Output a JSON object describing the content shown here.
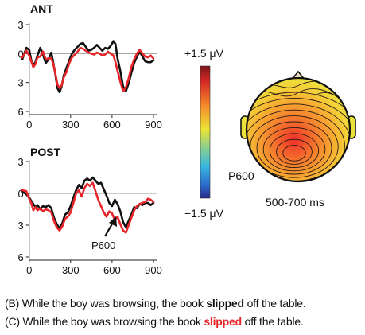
{
  "chart_data": [
    {
      "type": "line",
      "title": "ANT",
      "xlim": [
        -50,
        900
      ],
      "ylim": [
        -3,
        6
      ],
      "y_inverted": true,
      "xticks": [
        0,
        300,
        600,
        900
      ],
      "yticks": [
        -3,
        0,
        3,
        6
      ],
      "xtick_labels": [
        "0",
        "300",
        "600",
        "900"
      ],
      "ytick_labels": [
        "−3",
        "0",
        "3",
        "6"
      ],
      "series": [
        {
          "color": "#111111",
          "x": [
            -50,
            -20,
            0,
            15,
            30,
            45,
            60,
            80,
            100,
            120,
            140,
            160,
            175,
            190,
            205,
            220,
            235,
            250,
            270,
            290,
            310,
            330,
            350,
            370,
            390,
            410,
            430,
            450,
            470,
            490,
            510,
            530,
            550,
            570,
            590,
            610,
            625,
            640,
            660,
            680,
            700,
            720,
            740,
            760,
            780,
            800,
            820,
            840,
            860,
            880,
            900
          ],
          "y": [
            0.6,
            -0.6,
            -0.4,
            0.7,
            1.2,
            0.9,
            0.2,
            -0.6,
            0.1,
            1.0,
            0.6,
            -0.1,
            1.0,
            2.2,
            3.6,
            4.0,
            3.4,
            2.3,
            1.5,
            0.7,
            0.0,
            -0.4,
            -0.7,
            -1.0,
            -1.1,
            -0.7,
            -0.3,
            -0.4,
            -0.6,
            -0.9,
            -0.6,
            -0.3,
            -0.6,
            -0.5,
            -0.8,
            -1.3,
            -1.0,
            0.5,
            1.8,
            3.4,
            3.9,
            3.1,
            2.0,
            1.0,
            0.3,
            -0.2,
            0.3,
            0.8,
            0.9,
            0.9,
            0.7
          ]
        },
        {
          "color": "#e8262a",
          "x": [
            -50,
            -20,
            0,
            15,
            30,
            45,
            60,
            80,
            100,
            120,
            140,
            160,
            175,
            190,
            205,
            220,
            235,
            250,
            270,
            290,
            310,
            330,
            350,
            370,
            390,
            410,
            430,
            450,
            470,
            490,
            510,
            530,
            550,
            570,
            590,
            610,
            625,
            640,
            660,
            680,
            700,
            720,
            740,
            760,
            780,
            800,
            820,
            840,
            860,
            880,
            900
          ],
          "y": [
            0.4,
            -0.3,
            0.2,
            0.8,
            1.4,
            1.1,
            0.4,
            0.3,
            -0.2,
            0.6,
            0.5,
            0.5,
            1.1,
            2.1,
            3.2,
            3.6,
            3.3,
            2.5,
            1.9,
            1.0,
            0.4,
            0.1,
            -0.2,
            -0.6,
            -0.5,
            -0.3,
            -0.1,
            0.0,
            0.1,
            -0.1,
            0.0,
            0.2,
            0.1,
            -0.2,
            0.0,
            0.2,
            0.9,
            1.8,
            2.9,
            3.9,
            3.5,
            2.6,
            1.4,
            0.6,
            0.0,
            -0.4,
            0.0,
            0.3,
            0.4,
            0.2,
            0.5
          ]
        }
      ]
    },
    {
      "type": "line",
      "title": "POST",
      "xlim": [
        -50,
        900
      ],
      "ylim": [
        -3,
        6
      ],
      "y_inverted": true,
      "xticks": [
        0,
        300,
        600,
        900
      ],
      "yticks": [
        -3,
        0,
        3,
        6
      ],
      "xtick_labels": [
        "0",
        "300",
        "600",
        "900"
      ],
      "ytick_labels": [
        "−3",
        "0",
        "3",
        "6"
      ],
      "annotations": [
        {
          "text": "P600",
          "x": 600,
          "y": 2.2
        }
      ],
      "series": [
        {
          "color": "#111111",
          "x": [
            -50,
            -20,
            0,
            15,
            30,
            45,
            60,
            80,
            100,
            120,
            140,
            160,
            180,
            200,
            220,
            240,
            260,
            280,
            300,
            320,
            340,
            360,
            380,
            400,
            420,
            440,
            460,
            480,
            500,
            520,
            540,
            560,
            580,
            600,
            620,
            640,
            660,
            680,
            700,
            720,
            740,
            760,
            780,
            800,
            820,
            840,
            860,
            880,
            900
          ],
          "y": [
            -0.2,
            0.1,
            0.4,
            0.7,
            1.0,
            1.3,
            1.1,
            1.5,
            1.2,
            1.3,
            1.1,
            1.4,
            2.3,
            2.9,
            3.3,
            2.8,
            2.0,
            1.8,
            1.2,
            0.4,
            -0.3,
            -0.8,
            -0.5,
            -1.2,
            -1.4,
            -1.2,
            -1.5,
            -1.2,
            -0.9,
            -1.0,
            -0.4,
            0.2,
            0.9,
            1.2,
            0.6,
            1.0,
            1.7,
            2.7,
            3.2,
            2.6,
            2.0,
            1.3,
            1.4,
            1.0,
            1.1,
            0.9,
            0.9,
            1.1,
            0.9
          ]
        },
        {
          "color": "#e8262a",
          "x": [
            -50,
            -20,
            0,
            15,
            30,
            45,
            60,
            80,
            100,
            120,
            140,
            160,
            180,
            200,
            220,
            240,
            260,
            280,
            300,
            320,
            340,
            360,
            380,
            400,
            420,
            440,
            460,
            480,
            500,
            520,
            540,
            560,
            580,
            600,
            620,
            640,
            660,
            680,
            700,
            720,
            740,
            760,
            780,
            800,
            820,
            840,
            860,
            880,
            900
          ],
          "y": [
            -0.3,
            -0.2,
            0.5,
            0.9,
            1.6,
            1.3,
            1.6,
            1.4,
            1.7,
            1.5,
            1.6,
            1.8,
            2.6,
            3.2,
            3.5,
            3.1,
            2.4,
            2.2,
            1.8,
            0.9,
            0.0,
            -0.3,
            0.3,
            -0.5,
            -0.9,
            -0.7,
            -1.0,
            -0.2,
            0.6,
            1.2,
            1.8,
            2.2,
            1.7,
            1.9,
            2.5,
            2.2,
            2.9,
            3.5,
            3.7,
            3.0,
            2.3,
            1.6,
            1.2,
            1.0,
            0.9,
            0.8,
            0.5,
            0.6,
            0.8
          ]
        }
      ]
    }
  ],
  "colorbar": {
    "max_label": "+1.5 μV",
    "min_label": "−1.5 μV",
    "colors": [
      "#2b2f8f",
      "#2f6fd0",
      "#39b6e0",
      "#8dd08a",
      "#e8e53a",
      "#f7a328",
      "#e8422b",
      "#8a1a1e"
    ]
  },
  "topomap": {
    "component_label": "P600",
    "time_label": "500-700 ms"
  },
  "sentences": {
    "b_pre": "(B) While the boy was browsing, the book ",
    "b_verb": "slipped",
    "b_post": " off the table.",
    "c_pre": "(C) While the boy was browsing  the book ",
    "c_verb": "slipped",
    "c_post": " off the table."
  }
}
